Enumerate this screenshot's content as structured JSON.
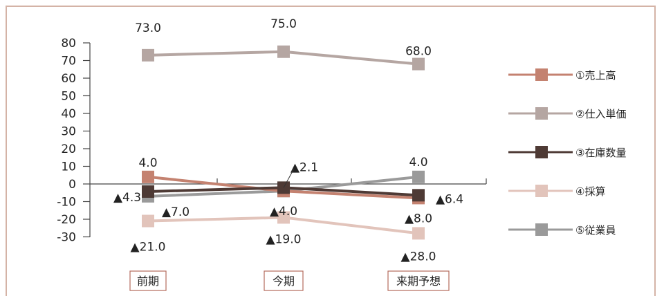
{
  "chart_data": {
    "type": "line",
    "categories": [
      "前期",
      "今期",
      "来期予想"
    ],
    "ylim": [
      -30,
      80
    ],
    "yticks": [
      80,
      70,
      60,
      50,
      40,
      30,
      20,
      10,
      0,
      -10,
      -20,
      -30
    ],
    "grid": false,
    "legend_position": "right",
    "series": [
      {
        "name": "①売上高",
        "color": "#c48270",
        "values": [
          4.0,
          -4.0,
          -8.0
        ],
        "labels": [
          "4.0",
          "▲4.0",
          "▲8.0"
        ]
      },
      {
        "name": "②仕入単価",
        "color": "#b5a6a2",
        "values": [
          73.0,
          75.0,
          68.0
        ],
        "labels": [
          "73.0",
          "75.0",
          "68.0"
        ]
      },
      {
        "name": "③在庫数量",
        "color": "#4e3a35",
        "values": [
          -4.3,
          -2.1,
          -6.4
        ],
        "labels": [
          "▲4.3",
          "▲2.1",
          "▲6.4"
        ]
      },
      {
        "name": "④採算",
        "color": "#e2c4bb",
        "values": [
          -21.0,
          -19.0,
          -28.0
        ],
        "labels": [
          "▲21.0",
          "▲19.0",
          "▲28.0"
        ]
      },
      {
        "name": "⑤従業員",
        "color": "#9a9a9a",
        "values": [
          -7.0,
          -4.0,
          4.0
        ],
        "labels": [
          "▲7.0",
          "",
          "4.0"
        ]
      }
    ]
  }
}
